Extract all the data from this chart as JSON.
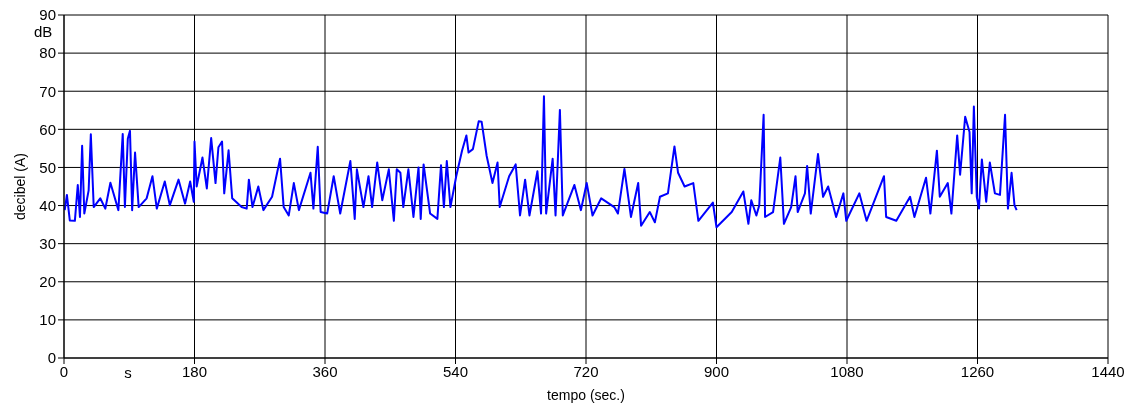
{
  "chart_data": {
    "type": "line",
    "xlabel": "tempo (sec.)",
    "ylabel": "decibel (A)",
    "annotations": [
      "dB",
      "s"
    ],
    "xlim": [
      0,
      1440
    ],
    "xticks": [
      0,
      180,
      360,
      540,
      720,
      900,
      1080,
      1260,
      1440
    ],
    "ylim": [
      0,
      90
    ],
    "yticks": [
      0,
      10,
      20,
      30,
      40,
      50,
      60,
      70,
      80,
      90
    ],
    "grid": true,
    "series": [
      {
        "color": "#0000ff",
        "x": [
          1,
          4,
          8,
          15,
          19,
          22,
          25,
          28,
          34,
          37,
          41,
          50,
          57,
          64,
          75,
          81,
          84,
          88,
          91,
          94,
          98,
          103,
          114,
          122,
          128,
          139,
          146,
          158,
          167,
          174,
          179,
          180,
          183,
          191,
          197,
          203,
          209,
          213,
          218,
          221,
          227,
          232,
          245,
          252,
          255,
          260,
          268,
          275,
          287,
          298,
          303,
          310,
          317,
          324,
          340,
          344,
          350,
          354,
          363,
          372,
          381,
          395,
          401,
          404,
          413,
          420,
          425,
          432,
          439,
          448,
          455,
          459,
          464,
          468,
          475,
          482,
          489,
          492,
          496,
          505,
          515,
          520,
          524,
          528,
          533,
          541,
          549,
          555,
          558,
          564,
          572,
          576,
          583,
          591,
          598,
          601,
          614,
          623,
          629,
          636,
          642,
          653,
          658,
          662,
          665,
          674,
          678,
          684,
          688,
          704,
          713,
          721,
          729,
          741,
          759,
          764,
          773,
          782,
          792,
          796,
          808,
          815,
          822,
          833,
          842,
          847,
          856,
          868,
          875,
          895,
          900,
          921,
          937,
          944,
          948,
          955,
          959,
          965,
          967,
          978,
          988,
          993,
          1003,
          1009,
          1012,
          1022,
          1025,
          1030,
          1040,
          1047,
          1054,
          1065,
          1075,
          1079,
          1097,
          1107,
          1131,
          1134,
          1148,
          1167,
          1173,
          1189,
          1195,
          1204,
          1208,
          1219,
          1224,
          1232,
          1236,
          1243,
          1249,
          1252,
          1255,
          1259,
          1262,
          1266,
          1272,
          1277,
          1284,
          1291,
          1298,
          1302,
          1307,
          1311,
          1314
        ],
        "values": [
          38.8,
          42.8,
          36.1,
          36,
          45.4,
          37,
          55.7,
          37.9,
          44,
          58.7,
          39.6,
          41.9,
          39.2,
          46,
          38.8,
          58.8,
          39.6,
          57.5,
          59.6,
          38.8,
          53.9,
          39.6,
          41.9,
          47.7,
          39.2,
          46.3,
          40.1,
          46.8,
          40.5,
          46.3,
          41,
          56.8,
          45,
          52.6,
          44.5,
          57.7,
          45.9,
          55.3,
          56.8,
          43.2,
          54.5,
          41.9,
          39.6,
          39.2,
          46.8,
          39.6,
          45,
          38.8,
          42.3,
          52.3,
          39.6,
          37.4,
          45.9,
          38.8,
          48.6,
          39.2,
          55.4,
          38.3,
          37.9,
          47.7,
          37.9,
          51.7,
          36.5,
          49.5,
          39.6,
          47.7,
          39.6,
          51.3,
          41.4,
          49.5,
          36,
          49.5,
          48.6,
          39.6,
          49.5,
          37,
          50,
          36.5,
          50.8,
          37.9,
          36.5,
          50.6,
          39.6,
          51.7,
          39.6,
          47.7,
          54.4,
          58.4,
          53.9,
          54.8,
          62.1,
          62,
          53,
          45.9,
          51.3,
          39.6,
          47.7,
          50.8,
          37.4,
          46.8,
          37.4,
          49,
          37.9,
          68.7,
          37.9,
          52.3,
          37.4,
          65.1,
          37.4,
          45.4,
          38.8,
          45.9,
          37.4,
          41.9,
          39.6,
          37.9,
          49.6,
          37,
          45.9,
          34.7,
          38.3,
          35.6,
          42.3,
          43.2,
          55.5,
          48.6,
          45,
          45.9,
          36,
          40.8,
          34.3,
          38.3,
          43.7,
          35.2,
          41.4,
          37.4,
          40.1,
          63.8,
          37,
          38.3,
          52.6,
          35.2,
          39.6,
          47.7,
          38.3,
          43.2,
          50.4,
          37.9,
          53.5,
          42.3,
          45,
          37,
          43.2,
          36,
          43.2,
          36,
          47.7,
          37,
          36,
          42.3,
          37,
          47.3,
          37.9,
          54.4,
          42.3,
          45.9,
          37.9,
          58.4,
          48.1,
          63.3,
          59.3,
          43.2,
          66,
          42.3,
          39.2,
          52.1,
          41,
          51.3,
          43.2,
          42.8,
          63.8,
          39.2,
          48.6,
          40.1,
          38.8
        ]
      }
    ]
  }
}
